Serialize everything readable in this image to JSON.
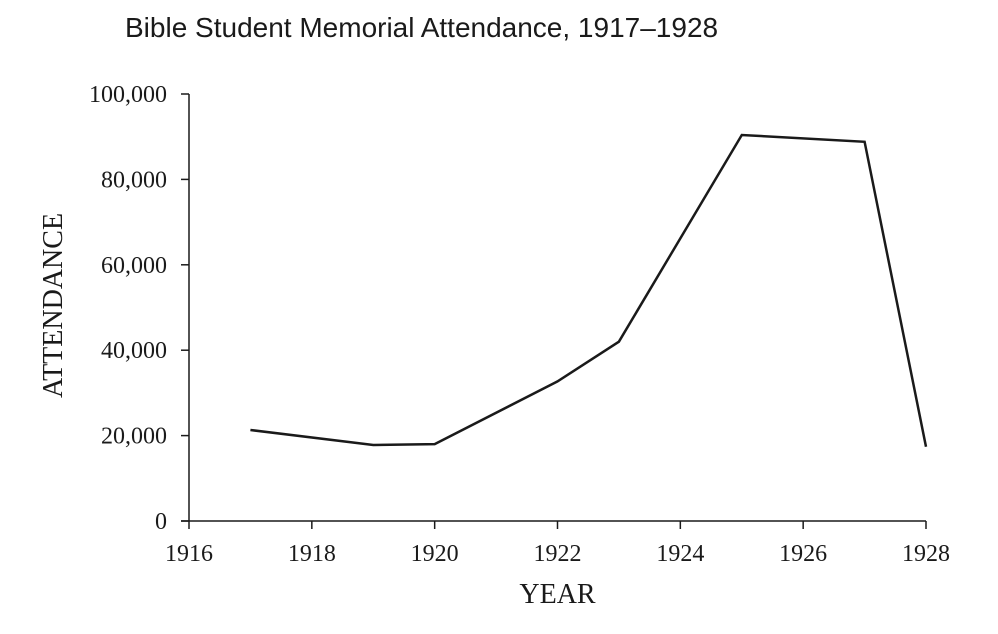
{
  "chart_data": {
    "type": "line",
    "title": "Bible Student Memorial Attendance, 1917–1928",
    "xlabel": "YEAR",
    "ylabel": "ATTENDANCE",
    "xlim": [
      1916,
      1928
    ],
    "ylim": [
      0,
      100000
    ],
    "x_ticks": [
      1916,
      1918,
      1920,
      1922,
      1924,
      1926,
      1928
    ],
    "y_ticks": [
      0,
      20000,
      40000,
      60000,
      80000,
      100000
    ],
    "x_tick_labels": [
      "1916",
      "1918",
      "1920",
      "1922",
      "1924",
      "1926",
      "1928"
    ],
    "y_tick_labels": [
      "0",
      "20,000",
      "40,000",
      "60,000",
      "80,000",
      "100,000"
    ],
    "grid": false,
    "line_color": "#1a1a1a",
    "series": [
      {
        "x": [
          1917,
          1919,
          1920,
          1922,
          1923,
          1925,
          1927,
          1928
        ],
        "y": [
          21300,
          17800,
          18000,
          32700,
          42000,
          90400,
          88800,
          17400
        ]
      }
    ]
  }
}
